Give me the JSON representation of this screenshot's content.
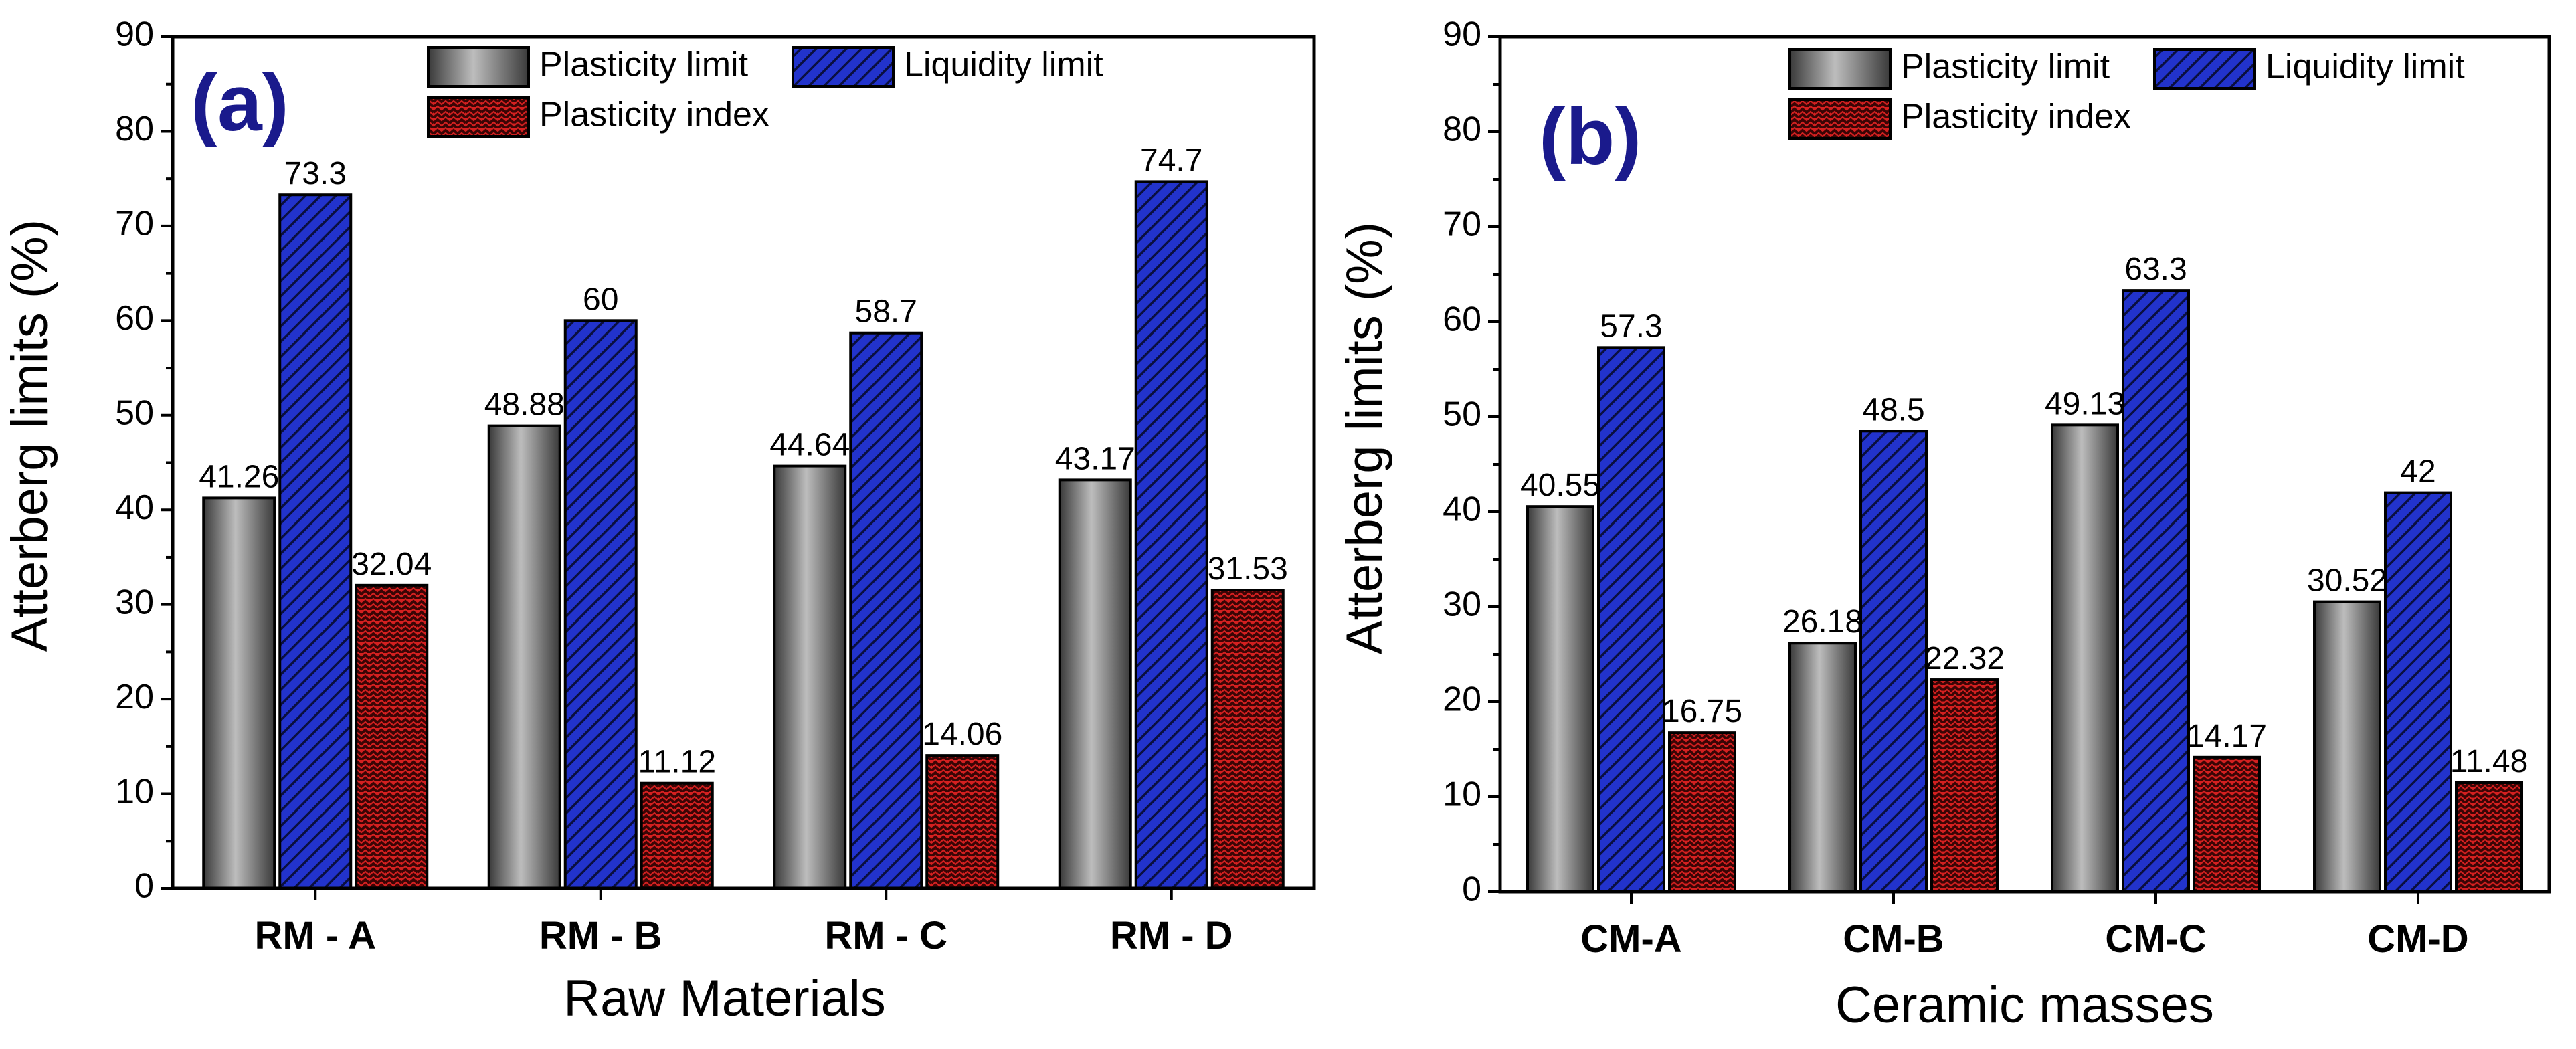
{
  "colors": {
    "plasticity_limit": "#8c8c8c",
    "liquidity_limit": "#1f2fbf",
    "plasticity_index": "#d42020",
    "panel_label": "#1a1a8c"
  },
  "chart_data": [
    {
      "type": "bar",
      "panel_label": "(a)",
      "title": "",
      "xlabel": "Raw Materials",
      "ylabel": "Atterberg limits (%)",
      "ylim": [
        0,
        90
      ],
      "yticks": [
        0,
        10,
        20,
        30,
        40,
        50,
        60,
        70,
        80,
        90
      ],
      "ytick_labels": [
        "0",
        "10",
        "20",
        "30",
        "40",
        "50",
        "60",
        "70",
        "80",
        "90"
      ],
      "legend_position": "top-right",
      "categories": [
        "RM - A",
        "RM - B",
        "RM - C",
        "RM - D"
      ],
      "series": [
        {
          "name": "Plasticity limit",
          "values": [
            41.26,
            48.88,
            44.64,
            43.17
          ],
          "labels": [
            "41.26",
            "48.88",
            "44.64",
            "43.17"
          ]
        },
        {
          "name": "Liquidity limit",
          "values": [
            73.3,
            60,
            58.7,
            74.7
          ],
          "labels": [
            "73.3",
            "60",
            "58.7",
            "74.7"
          ]
        },
        {
          "name": "Plasticity index",
          "values": [
            32.04,
            11.12,
            14.06,
            31.53
          ],
          "labels": [
            "32.04",
            "11.12",
            "14.06",
            "31.53"
          ]
        }
      ]
    },
    {
      "type": "bar",
      "panel_label": "(b)",
      "title": "",
      "xlabel": "Ceramic masses",
      "ylabel": "Atterberg limits (%)",
      "ylim": [
        0,
        90
      ],
      "yticks": [
        0,
        10,
        20,
        30,
        40,
        50,
        60,
        70,
        80,
        90
      ],
      "ytick_labels": [
        "0",
        "10",
        "20",
        "30",
        "40",
        "50",
        "60",
        "70",
        "80",
        "90"
      ],
      "legend_position": "top-right",
      "categories": [
        "CM-A",
        "CM-B",
        "CM-C",
        "CM-D"
      ],
      "series": [
        {
          "name": "Plasticity limit",
          "values": [
            40.55,
            26.18,
            49.13,
            30.52
          ],
          "labels": [
            "40.55",
            "26.18",
            "49.13",
            "30.52"
          ]
        },
        {
          "name": "Liquidity limit",
          "values": [
            57.3,
            48.5,
            63.3,
            42
          ],
          "labels": [
            "57.3",
            "48.5",
            "63.3",
            "42"
          ]
        },
        {
          "name": "Plasticity index",
          "values": [
            16.75,
            22.32,
            14.17,
            11.48
          ],
          "labels": [
            "16.75",
            "22.32",
            "14.17",
            "11.48"
          ]
        }
      ]
    }
  ]
}
